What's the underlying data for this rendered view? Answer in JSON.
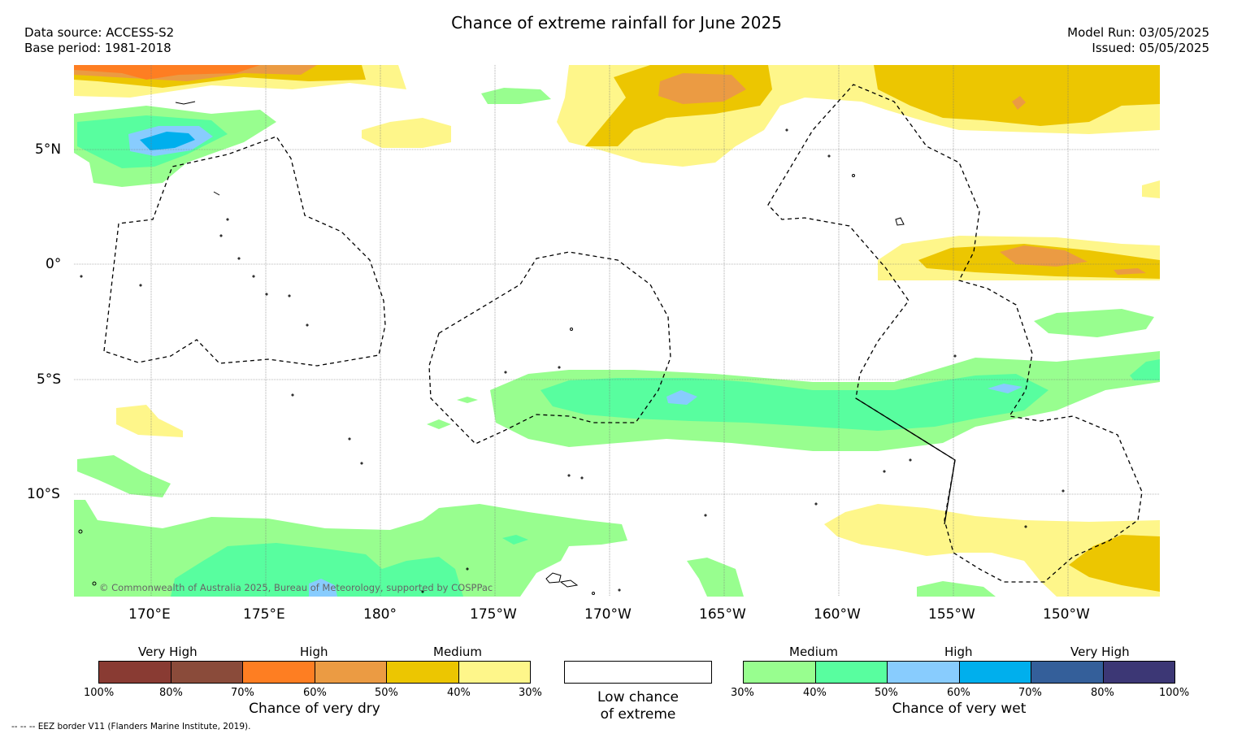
{
  "header": {
    "title": "Chance of extreme rainfall for June 2025",
    "data_source": "Data source: ACCESS-S2",
    "base_period": "Base period: 1981-2018",
    "model_run": "Model Run: 03/05/2025",
    "issued": "Issued: 05/05/2025"
  },
  "map": {
    "lat_labels": [
      "5°N",
      "0°",
      "5°S",
      "10°S"
    ],
    "lon_labels": [
      "170°E",
      "175°E",
      "180°",
      "175°W",
      "170°W",
      "165°W",
      "160°W",
      "155°W",
      "150°W"
    ],
    "copyright": "© Commonwealth of Australia 2025, Bureau of Meteorology, supported by COSPPac",
    "colors": {
      "dry_30": "#fef68a",
      "dry_40": "#ecc601",
      "dry_50": "#eb9b43",
      "dry_60": "#fe7e22",
      "dry_70": "#8a4b3a",
      "dry_80": "#893b33",
      "wet_30": "#98fe8f",
      "wet_40": "#58fe9f",
      "wet_50": "#88ccfe",
      "wet_60": "#00afed",
      "wet_70": "#345f9a",
      "wet_80": "#3c3775"
    }
  },
  "legend": {
    "dry": {
      "levels": [
        "Very High",
        "High",
        "Medium"
      ],
      "percents": [
        "100%",
        "80%",
        "70%",
        "60%",
        "50%",
        "40%",
        "30%"
      ],
      "caption": "Chance of very dry",
      "colors": [
        "#893b33",
        "#8a4b3a",
        "#fe7e22",
        "#eb9b43",
        "#ecc601",
        "#fef68a"
      ]
    },
    "neutral": {
      "caption_line1": "Low chance",
      "caption_line2": "of extreme"
    },
    "wet": {
      "levels": [
        "Medium",
        "High",
        "Very High"
      ],
      "percents": [
        "30%",
        "40%",
        "50%",
        "60%",
        "70%",
        "80%",
        "100%"
      ],
      "caption": "Chance of very wet",
      "colors": [
        "#98fe8f",
        "#58fe9f",
        "#88ccfe",
        "#00afed",
        "#345f9a",
        "#3c3775"
      ]
    }
  },
  "footnote": "-- -- -- EEZ border V11 (Flanders Marine Institute, 2019)."
}
